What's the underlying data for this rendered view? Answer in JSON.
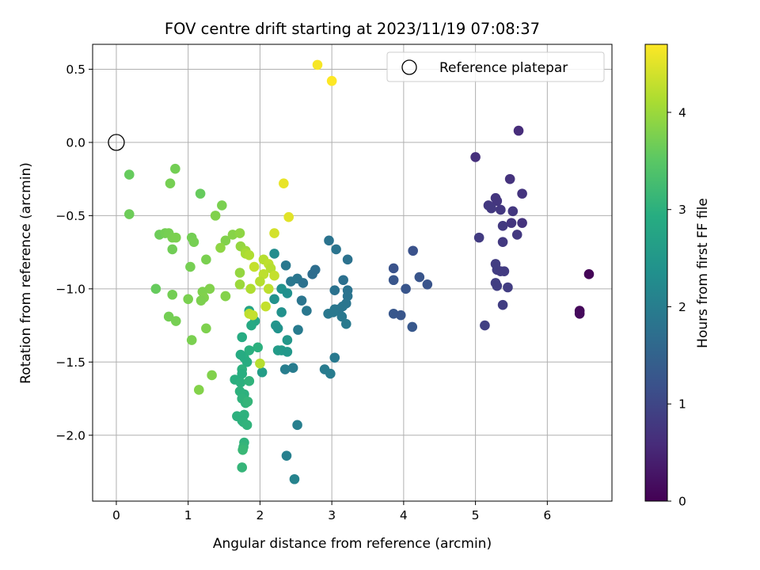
{
  "chart_data": {
    "type": "scatter",
    "title": "FOV centre drift starting at 2023/11/19 07:08:37",
    "xlabel": "Angular distance from reference (arcmin)",
    "ylabel": "Rotation from reference (arcmin)",
    "xlim": [
      -0.33,
      6.9
    ],
    "ylim": [
      -2.45,
      0.67
    ],
    "xticks": [
      0,
      1,
      2,
      3,
      4,
      5,
      6
    ],
    "yticks": [
      0.5,
      0.0,
      -0.5,
      -1.0,
      -1.5,
      -2.0
    ],
    "xtick_labels": [
      "0",
      "1",
      "2",
      "3",
      "4",
      "5",
      "6"
    ],
    "ytick_labels": [
      "0.5",
      "0.0",
      "−0.5",
      "−1.0",
      "−1.5",
      "−2.0"
    ],
    "grid": true,
    "legend_placement": "top-right",
    "legend_label": "Reference platepar",
    "reference_point": [
      0,
      0
    ],
    "colormap": "viridis",
    "colorbar": {
      "label": "Hours from first FF file",
      "range": [
        0,
        4.7
      ],
      "ticks": [
        0,
        1,
        2,
        3,
        4
      ],
      "tick_labels": [
        "0",
        "1",
        "2",
        "3",
        "4"
      ]
    },
    "points": [
      [
        6.58,
        -0.9,
        0.05
      ],
      [
        6.45,
        -1.15,
        0.1
      ],
      [
        6.45,
        -1.17,
        0.12
      ],
      [
        5.6,
        0.08,
        0.6
      ],
      [
        5.0,
        -0.1,
        0.65
      ],
      [
        5.48,
        -0.25,
        0.7
      ],
      [
        5.65,
        -0.35,
        0.72
      ],
      [
        5.28,
        -0.38,
        0.75
      ],
      [
        5.3,
        -0.4,
        0.74
      ],
      [
        5.18,
        -0.43,
        0.78
      ],
      [
        5.22,
        -0.45,
        0.8
      ],
      [
        5.35,
        -0.46,
        0.76
      ],
      [
        5.52,
        -0.47,
        0.77
      ],
      [
        5.65,
        -0.55,
        0.7
      ],
      [
        5.5,
        -0.55,
        0.73
      ],
      [
        5.38,
        -0.57,
        0.8
      ],
      [
        5.58,
        -0.63,
        0.78
      ],
      [
        5.05,
        -0.65,
        0.82
      ],
      [
        5.38,
        -0.68,
        0.79
      ],
      [
        5.28,
        -0.83,
        0.85
      ],
      [
        5.3,
        -0.87,
        0.86
      ],
      [
        5.35,
        -0.88,
        0.84
      ],
      [
        5.4,
        -0.88,
        0.83
      ],
      [
        5.28,
        -0.96,
        0.87
      ],
      [
        5.3,
        -0.98,
        0.88
      ],
      [
        5.45,
        -0.99,
        0.85
      ],
      [
        5.38,
        -1.11,
        0.86
      ],
      [
        5.13,
        -1.25,
        0.9
      ],
      [
        4.13,
        -0.74,
        1.2
      ],
      [
        3.86,
        -0.86,
        1.22
      ],
      [
        4.22,
        -0.92,
        1.25
      ],
      [
        3.86,
        -0.94,
        1.26
      ],
      [
        4.33,
        -0.97,
        1.23
      ],
      [
        4.03,
        -1.0,
        1.24
      ],
      [
        3.86,
        -1.17,
        1.28
      ],
      [
        3.96,
        -1.18,
        1.27
      ],
      [
        4.12,
        -1.26,
        1.3
      ],
      [
        2.96,
        -0.67,
        1.8
      ],
      [
        3.06,
        -0.73,
        1.82
      ],
      [
        3.22,
        -0.8,
        1.78
      ],
      [
        2.77,
        -0.87,
        1.7
      ],
      [
        2.73,
        -0.9,
        1.68
      ],
      [
        2.36,
        -0.84,
        1.9
      ],
      [
        3.16,
        -0.94,
        1.75
      ],
      [
        2.52,
        -0.93,
        1.85
      ],
      [
        2.43,
        -0.95,
        1.88
      ],
      [
        2.6,
        -0.96,
        1.76
      ],
      [
        3.22,
        -1.01,
        1.8
      ],
      [
        3.04,
        -1.01,
        1.79
      ],
      [
        3.22,
        -1.05,
        1.81
      ],
      [
        2.58,
        -1.08,
        1.83
      ],
      [
        3.2,
        -1.1,
        1.84
      ],
      [
        3.15,
        -1.12,
        1.85
      ],
      [
        3.1,
        -1.14,
        1.86
      ],
      [
        3.04,
        -1.14,
        1.87
      ],
      [
        2.65,
        -1.15,
        1.88
      ],
      [
        2.95,
        -1.17,
        1.89
      ],
      [
        3.14,
        -1.19,
        1.9
      ],
      [
        3.02,
        -1.16,
        1.9
      ],
      [
        3.2,
        -1.24,
        1.93
      ],
      [
        2.53,
        -1.28,
        1.95
      ],
      [
        3.04,
        -1.47,
        1.92
      ],
      [
        2.9,
        -1.55,
        1.96
      ],
      [
        2.98,
        -1.58,
        1.97
      ],
      [
        2.46,
        -1.54,
        1.98
      ],
      [
        2.35,
        -1.55,
        2.0
      ],
      [
        2.52,
        -1.93,
        2.02
      ],
      [
        2.37,
        -2.14,
        2.05
      ],
      [
        2.48,
        -2.3,
        2.1
      ],
      [
        2.2,
        -0.76,
        2.3
      ],
      [
        2.3,
        -1.0,
        2.4
      ],
      [
        2.38,
        -1.03,
        2.35
      ],
      [
        2.2,
        -1.07,
        2.4
      ],
      [
        2.3,
        -1.16,
        2.38
      ],
      [
        2.22,
        -1.25,
        2.45
      ],
      [
        2.25,
        -1.27,
        2.42
      ],
      [
        2.38,
        -1.35,
        2.5
      ],
      [
        2.25,
        -1.42,
        2.6
      ],
      [
        2.3,
        -1.42,
        2.55
      ],
      [
        2.38,
        -1.43,
        2.52
      ],
      [
        2.03,
        -1.57,
        2.62
      ],
      [
        1.85,
        -1.15,
        2.75
      ],
      [
        1.93,
        -1.22,
        2.8
      ],
      [
        1.88,
        -1.25,
        2.85
      ],
      [
        1.75,
        -1.33,
        2.9
      ],
      [
        1.97,
        -1.4,
        3.0
      ],
      [
        1.85,
        -1.42,
        2.98
      ],
      [
        1.78,
        -1.47,
        2.95
      ],
      [
        1.73,
        -1.45,
        2.9
      ],
      [
        1.82,
        -1.5,
        2.92
      ],
      [
        1.75,
        -1.55,
        3.0
      ],
      [
        1.75,
        -1.58,
        2.95
      ],
      [
        1.65,
        -1.62,
        2.97
      ],
      [
        1.73,
        -1.64,
        2.99
      ],
      [
        1.85,
        -1.63,
        3.05
      ],
      [
        1.78,
        -1.72,
        3.0
      ],
      [
        1.72,
        -1.7,
        3.02
      ],
      [
        1.75,
        -1.75,
        3.04
      ],
      [
        1.8,
        -1.78,
        3.05
      ],
      [
        1.83,
        -1.77,
        3.1
      ],
      [
        1.68,
        -1.87,
        3.0
      ],
      [
        1.78,
        -1.86,
        3.02
      ],
      [
        1.75,
        -1.9,
        3.0
      ],
      [
        1.77,
        -1.91,
        3.03
      ],
      [
        1.82,
        -1.93,
        3.05
      ],
      [
        1.78,
        -2.05,
        3.05
      ],
      [
        1.77,
        -2.08,
        3.1
      ],
      [
        1.76,
        -2.1,
        3.15
      ],
      [
        1.75,
        -2.22,
        3.1
      ],
      [
        0.18,
        -0.22,
        3.6
      ],
      [
        0.18,
        -0.49,
        3.65
      ],
      [
        0.82,
        -0.18,
        3.7
      ],
      [
        0.75,
        -0.28,
        3.72
      ],
      [
        1.17,
        -0.35,
        3.6
      ],
      [
        1.47,
        -0.43,
        3.75
      ],
      [
        1.38,
        -0.5,
        3.8
      ],
      [
        0.6,
        -0.63,
        3.65
      ],
      [
        0.68,
        -0.62,
        3.7
      ],
      [
        0.73,
        -0.62,
        3.72
      ],
      [
        0.78,
        -0.65,
        3.74
      ],
      [
        0.83,
        -0.65,
        3.76
      ],
      [
        1.05,
        -0.65,
        3.7
      ],
      [
        1.08,
        -0.68,
        3.72
      ],
      [
        1.52,
        -0.67,
        3.8
      ],
      [
        1.62,
        -0.63,
        3.85
      ],
      [
        1.72,
        -0.62,
        3.9
      ],
      [
        1.45,
        -0.72,
        3.9
      ],
      [
        1.73,
        -0.71,
        3.95
      ],
      [
        1.8,
        -0.74,
        4.0
      ],
      [
        0.78,
        -0.73,
        3.68
      ],
      [
        1.25,
        -0.8,
        3.75
      ],
      [
        1.03,
        -0.85,
        3.72
      ],
      [
        1.72,
        -0.89,
        3.95
      ],
      [
        1.72,
        -0.97,
        4.0
      ],
      [
        1.3,
        -1.0,
        3.8
      ],
      [
        1.2,
        -1.02,
        3.78
      ],
      [
        0.55,
        -1.0,
        3.6
      ],
      [
        0.78,
        -1.04,
        3.7
      ],
      [
        1.22,
        -1.06,
        3.8
      ],
      [
        1.0,
        -1.07,
        3.75
      ],
      [
        1.18,
        -1.08,
        3.77
      ],
      [
        1.52,
        -1.05,
        3.85
      ],
      [
        1.52,
        -1.05,
        3.83
      ],
      [
        0.73,
        -1.19,
        3.7
      ],
      [
        0.83,
        -1.22,
        3.72
      ],
      [
        1.25,
        -1.27,
        3.78
      ],
      [
        1.05,
        -1.35,
        3.75
      ],
      [
        1.33,
        -1.59,
        3.8
      ],
      [
        1.15,
        -1.69,
        3.82
      ],
      [
        1.8,
        -0.76,
        4.1
      ],
      [
        2.05,
        -0.8,
        4.2
      ],
      [
        1.85,
        -0.77,
        4.15
      ],
      [
        2.12,
        -0.83,
        4.25
      ],
      [
        2.15,
        -0.86,
        4.2
      ],
      [
        1.92,
        -0.85,
        4.3
      ],
      [
        2.05,
        -0.9,
        4.25
      ],
      [
        2.0,
        -0.95,
        4.2
      ],
      [
        1.87,
        -1.0,
        4.15
      ],
      [
        2.2,
        -0.91,
        4.3
      ],
      [
        2.12,
        -1.0,
        4.25
      ],
      [
        2.08,
        -1.12,
        4.3
      ],
      [
        1.85,
        -1.17,
        4.25
      ],
      [
        1.9,
        -1.18,
        4.3
      ],
      [
        2.0,
        -1.51,
        4.2
      ],
      [
        2.2,
        -0.62,
        4.4
      ],
      [
        2.4,
        -0.51,
        4.5
      ],
      [
        2.33,
        -0.28,
        4.55
      ],
      [
        2.8,
        0.53,
        4.65
      ],
      [
        3.0,
        0.42,
        4.7
      ]
    ]
  }
}
